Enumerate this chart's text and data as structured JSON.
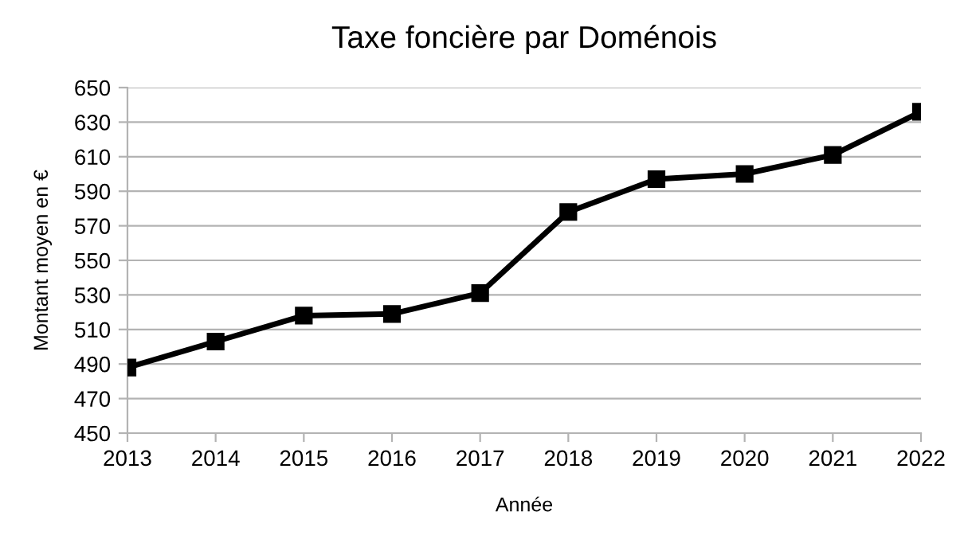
{
  "chart_data": {
    "type": "line",
    "title": "Taxe foncière par Doménois",
    "xlabel": "Année",
    "ylabel": "Montant moyen en €",
    "x": [
      2013,
      2014,
      2015,
      2016,
      2017,
      2018,
      2019,
      2020,
      2021,
      2022
    ],
    "series": [
      {
        "color": "#000000",
        "values": [
          488,
          503,
          518,
          519,
          531,
          578,
          597,
          600,
          611,
          636
        ]
      }
    ],
    "xlim": [
      2013,
      2022
    ],
    "xticks": [
      2013,
      2014,
      2015,
      2016,
      2017,
      2018,
      2019,
      2020,
      2021,
      2022
    ],
    "ylim": [
      450,
      650
    ],
    "yticks": [
      450,
      470,
      490,
      510,
      530,
      550,
      570,
      590,
      610,
      630,
      650
    ],
    "grid": "y",
    "marker": "square",
    "line_style": "solid",
    "legend": false
  }
}
